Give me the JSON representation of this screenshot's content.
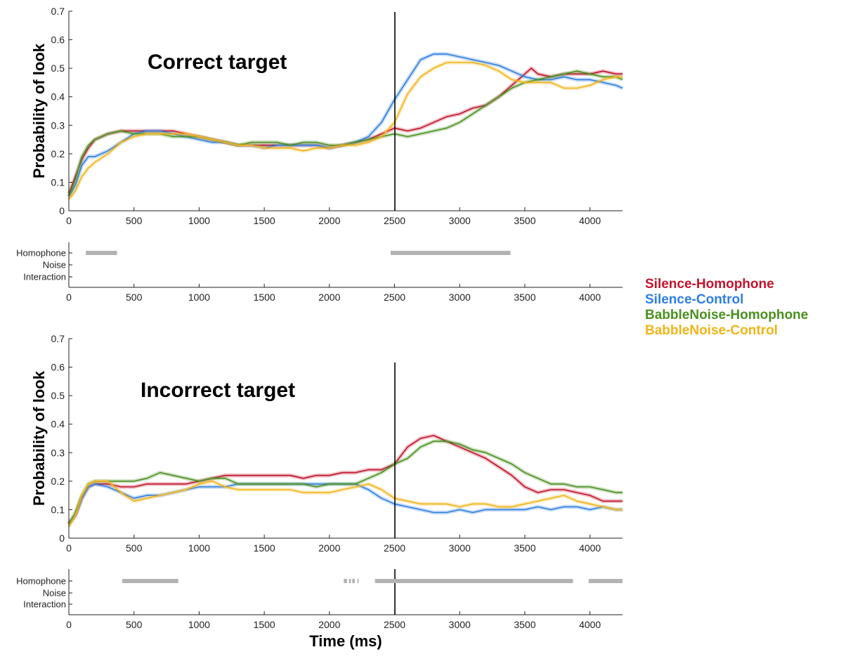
{
  "chart_data": [
    {
      "type": "line",
      "title": "Correct target",
      "ylabel": "Probability of look",
      "ylim": [
        0,
        0.7
      ],
      "xlim": [
        0,
        4250
      ],
      "yticks": [
        "0",
        "0.1",
        "0.2",
        "0.3",
        "0.4",
        "0.5",
        "0.6",
        "0.7"
      ],
      "xticks": [
        "0",
        "500",
        "1000",
        "1500",
        "2000",
        "2500",
        "3000",
        "3500",
        "4000"
      ],
      "vline_x": 2500,
      "series": [
        {
          "name": "Silence-Homophone",
          "color": "#c0142c",
          "x": [
            0,
            50,
            100,
            150,
            200,
            300,
            400,
            500,
            600,
            700,
            800,
            900,
            1000,
            1100,
            1200,
            1300,
            1400,
            1500,
            1600,
            1700,
            1800,
            1900,
            2000,
            2100,
            2200,
            2300,
            2400,
            2500,
            2600,
            2700,
            2800,
            2900,
            3000,
            3100,
            3200,
            3300,
            3400,
            3500,
            3550,
            3600,
            3700,
            3800,
            3900,
            4000,
            4100,
            4200,
            4250
          ],
          "y": [
            0.06,
            0.12,
            0.18,
            0.22,
            0.25,
            0.27,
            0.28,
            0.28,
            0.28,
            0.28,
            0.28,
            0.27,
            0.26,
            0.25,
            0.24,
            0.23,
            0.23,
            0.23,
            0.23,
            0.23,
            0.23,
            0.23,
            0.22,
            0.23,
            0.24,
            0.25,
            0.27,
            0.29,
            0.28,
            0.29,
            0.31,
            0.33,
            0.34,
            0.36,
            0.37,
            0.4,
            0.44,
            0.48,
            0.5,
            0.48,
            0.47,
            0.48,
            0.48,
            0.48,
            0.49,
            0.48,
            0.48
          ]
        },
        {
          "name": "Silence-Control",
          "color": "#2f7fe0",
          "x": [
            0,
            50,
            100,
            150,
            200,
            300,
            400,
            500,
            600,
            700,
            800,
            900,
            1000,
            1100,
            1200,
            1300,
            1400,
            1500,
            1600,
            1700,
            1800,
            1900,
            2000,
            2100,
            2200,
            2300,
            2400,
            2500,
            2600,
            2700,
            2800,
            2900,
            3000,
            3100,
            3200,
            3300,
            3400,
            3500,
            3600,
            3700,
            3800,
            3900,
            4000,
            4100,
            4200,
            4250
          ],
          "y": [
            0.05,
            0.09,
            0.16,
            0.19,
            0.19,
            0.21,
            0.24,
            0.27,
            0.28,
            0.28,
            0.27,
            0.26,
            0.25,
            0.24,
            0.24,
            0.23,
            0.23,
            0.22,
            0.23,
            0.23,
            0.23,
            0.23,
            0.22,
            0.23,
            0.24,
            0.26,
            0.31,
            0.39,
            0.46,
            0.53,
            0.55,
            0.55,
            0.54,
            0.53,
            0.52,
            0.51,
            0.49,
            0.47,
            0.46,
            0.46,
            0.47,
            0.46,
            0.46,
            0.45,
            0.44,
            0.43
          ]
        },
        {
          "name": "BabbleNoise-Homophone",
          "color": "#4a9020",
          "x": [
            0,
            50,
            100,
            150,
            200,
            300,
            400,
            500,
            600,
            700,
            800,
            900,
            1000,
            1100,
            1200,
            1300,
            1400,
            1500,
            1600,
            1700,
            1800,
            1900,
            2000,
            2100,
            2200,
            2300,
            2400,
            2500,
            2600,
            2700,
            2800,
            2900,
            3000,
            3100,
            3200,
            3300,
            3400,
            3500,
            3600,
            3700,
            3800,
            3900,
            4000,
            4100,
            4200,
            4250
          ],
          "y": [
            0.05,
            0.11,
            0.19,
            0.23,
            0.25,
            0.27,
            0.28,
            0.27,
            0.27,
            0.27,
            0.26,
            0.26,
            0.26,
            0.25,
            0.24,
            0.23,
            0.24,
            0.24,
            0.24,
            0.23,
            0.24,
            0.24,
            0.23,
            0.23,
            0.24,
            0.25,
            0.26,
            0.27,
            0.26,
            0.27,
            0.28,
            0.29,
            0.31,
            0.34,
            0.37,
            0.4,
            0.43,
            0.45,
            0.46,
            0.47,
            0.48,
            0.49,
            0.48,
            0.47,
            0.47,
            0.46
          ]
        },
        {
          "name": "BabbleNoise-Control",
          "color": "#f2b418",
          "x": [
            0,
            50,
            100,
            150,
            200,
            300,
            400,
            500,
            600,
            700,
            800,
            900,
            1000,
            1100,
            1200,
            1300,
            1400,
            1500,
            1600,
            1700,
            1800,
            1900,
            2000,
            2100,
            2200,
            2300,
            2400,
            2500,
            2600,
            2700,
            2800,
            2900,
            3000,
            3100,
            3200,
            3300,
            3400,
            3500,
            3600,
            3700,
            3800,
            3900,
            4000,
            4100,
            4200,
            4250
          ],
          "y": [
            0.04,
            0.07,
            0.12,
            0.15,
            0.17,
            0.2,
            0.24,
            0.26,
            0.27,
            0.27,
            0.27,
            0.27,
            0.26,
            0.25,
            0.24,
            0.23,
            0.23,
            0.22,
            0.22,
            0.22,
            0.21,
            0.22,
            0.22,
            0.23,
            0.23,
            0.24,
            0.26,
            0.31,
            0.41,
            0.47,
            0.5,
            0.52,
            0.52,
            0.52,
            0.51,
            0.49,
            0.46,
            0.45,
            0.45,
            0.45,
            0.43,
            0.43,
            0.44,
            0.46,
            0.47,
            0.47
          ]
        }
      ]
    },
    {
      "type": "line",
      "title": "Incorrect target",
      "ylabel": "Probability of look",
      "xlabel": "Time (ms)",
      "ylim": [
        0,
        0.7
      ],
      "xlim": [
        0,
        4250
      ],
      "yticks": [
        "0",
        "0.1",
        "0.2",
        "0.3",
        "0.4",
        "0.5",
        "0.6",
        "0.7"
      ],
      "xticks": [
        "0",
        "500",
        "1000",
        "1500",
        "2000",
        "2500",
        "3000",
        "3500",
        "4000"
      ],
      "vline_x": 2500,
      "series": [
        {
          "name": "Silence-Homophone",
          "color": "#c0142c",
          "x": [
            0,
            50,
            100,
            150,
            200,
            300,
            400,
            500,
            600,
            700,
            800,
            900,
            1000,
            1100,
            1200,
            1300,
            1400,
            1500,
            1600,
            1700,
            1800,
            1900,
            2000,
            2100,
            2200,
            2300,
            2400,
            2500,
            2600,
            2700,
            2800,
            2900,
            3000,
            3100,
            3200,
            3300,
            3400,
            3500,
            3600,
            3700,
            3800,
            3900,
            4000,
            4100,
            4200,
            4250
          ],
          "y": [
            0.05,
            0.08,
            0.14,
            0.18,
            0.19,
            0.19,
            0.18,
            0.18,
            0.19,
            0.19,
            0.19,
            0.19,
            0.2,
            0.21,
            0.22,
            0.22,
            0.22,
            0.22,
            0.22,
            0.22,
            0.21,
            0.22,
            0.22,
            0.23,
            0.23,
            0.24,
            0.24,
            0.26,
            0.32,
            0.35,
            0.36,
            0.34,
            0.32,
            0.3,
            0.28,
            0.25,
            0.22,
            0.18,
            0.16,
            0.17,
            0.17,
            0.16,
            0.15,
            0.13,
            0.13,
            0.13
          ]
        },
        {
          "name": "Silence-Control",
          "color": "#2f7fe0",
          "x": [
            0,
            50,
            100,
            150,
            200,
            300,
            400,
            500,
            600,
            700,
            800,
            900,
            1000,
            1100,
            1200,
            1300,
            1400,
            1500,
            1600,
            1700,
            1800,
            1900,
            2000,
            2100,
            2200,
            2300,
            2400,
            2500,
            2600,
            2700,
            2800,
            2900,
            3000,
            3100,
            3200,
            3300,
            3400,
            3500,
            3600,
            3700,
            3800,
            3900,
            4000,
            4100,
            4200,
            4250
          ],
          "y": [
            0.05,
            0.08,
            0.14,
            0.18,
            0.19,
            0.18,
            0.16,
            0.14,
            0.15,
            0.15,
            0.16,
            0.17,
            0.18,
            0.18,
            0.18,
            0.19,
            0.19,
            0.19,
            0.19,
            0.19,
            0.19,
            0.19,
            0.19,
            0.19,
            0.19,
            0.17,
            0.14,
            0.12,
            0.11,
            0.1,
            0.09,
            0.09,
            0.1,
            0.09,
            0.1,
            0.1,
            0.1,
            0.1,
            0.11,
            0.1,
            0.11,
            0.11,
            0.1,
            0.11,
            0.1,
            0.1
          ]
        },
        {
          "name": "BabbleNoise-Homophone",
          "color": "#4a9020",
          "x": [
            0,
            50,
            100,
            150,
            200,
            300,
            400,
            500,
            600,
            700,
            800,
            900,
            1000,
            1100,
            1200,
            1300,
            1400,
            1500,
            1600,
            1700,
            1800,
            1900,
            2000,
            2100,
            2200,
            2300,
            2400,
            2500,
            2600,
            2700,
            2800,
            2900,
            3000,
            3100,
            3200,
            3300,
            3400,
            3500,
            3600,
            3700,
            3800,
            3900,
            4000,
            4100,
            4200,
            4250
          ],
          "y": [
            0.05,
            0.09,
            0.15,
            0.19,
            0.2,
            0.2,
            0.2,
            0.2,
            0.21,
            0.23,
            0.22,
            0.21,
            0.2,
            0.21,
            0.21,
            0.19,
            0.19,
            0.19,
            0.19,
            0.19,
            0.19,
            0.18,
            0.19,
            0.19,
            0.19,
            0.21,
            0.23,
            0.26,
            0.28,
            0.32,
            0.34,
            0.34,
            0.33,
            0.31,
            0.3,
            0.28,
            0.26,
            0.23,
            0.21,
            0.19,
            0.19,
            0.18,
            0.18,
            0.17,
            0.16,
            0.16
          ]
        },
        {
          "name": "BabbleNoise-Control",
          "color": "#f2b418",
          "x": [
            0,
            50,
            100,
            150,
            200,
            300,
            400,
            500,
            600,
            700,
            800,
            900,
            1000,
            1100,
            1200,
            1300,
            1400,
            1500,
            1600,
            1700,
            1800,
            1900,
            2000,
            2100,
            2200,
            2300,
            2400,
            2500,
            2600,
            2700,
            2800,
            2900,
            3000,
            3100,
            3200,
            3300,
            3400,
            3500,
            3600,
            3700,
            3800,
            3900,
            4000,
            4100,
            4200,
            4250
          ],
          "y": [
            0.04,
            0.08,
            0.15,
            0.19,
            0.2,
            0.2,
            0.16,
            0.13,
            0.14,
            0.15,
            0.16,
            0.17,
            0.19,
            0.2,
            0.18,
            0.17,
            0.17,
            0.17,
            0.17,
            0.17,
            0.16,
            0.16,
            0.16,
            0.17,
            0.18,
            0.19,
            0.17,
            0.14,
            0.13,
            0.12,
            0.12,
            0.12,
            0.11,
            0.12,
            0.12,
            0.11,
            0.11,
            0.12,
            0.13,
            0.14,
            0.15,
            0.13,
            0.12,
            0.11,
            0.1,
            0.1
          ]
        }
      ]
    }
  ],
  "significance": [
    {
      "rows": [
        "Homophone",
        "Noise",
        "Interaction"
      ],
      "xticks": [
        "0",
        "500",
        "1000",
        "1500",
        "2000",
        "2500",
        "3000",
        "3500",
        "4000"
      ],
      "segments": [
        {
          "row": "Homophone",
          "start": 130,
          "end": 370
        },
        {
          "row": "Homophone",
          "start": 2470,
          "end": 3390
        }
      ]
    },
    {
      "rows": [
        "Homophone",
        "Noise",
        "Interaction"
      ],
      "xticks": [
        "0",
        "500",
        "1000",
        "1500",
        "2000",
        "2500",
        "3000",
        "3500",
        "4000"
      ],
      "segments": [
        {
          "row": "Homophone",
          "start": 410,
          "end": 840
        },
        {
          "row": "Homophone",
          "start": 2110,
          "end": 2135
        },
        {
          "row": "Homophone",
          "start": 2150,
          "end": 2165
        },
        {
          "row": "Homophone",
          "start": 2175,
          "end": 2195
        },
        {
          "row": "Homophone",
          "start": 2215,
          "end": 2225
        },
        {
          "row": "Homophone",
          "start": 2350,
          "end": 3870
        },
        {
          "row": "Homophone",
          "start": 3990,
          "end": 4250
        }
      ]
    }
  ],
  "legend": [
    {
      "label": "Silence-Homophone",
      "color": "#c0142c"
    },
    {
      "label": "Silence-Control",
      "color": "#2f7fe0"
    },
    {
      "label": "BabbleNoise-Homophone",
      "color": "#4a9020"
    },
    {
      "label": "BabbleNoise-Control",
      "color": "#f2b418"
    }
  ]
}
